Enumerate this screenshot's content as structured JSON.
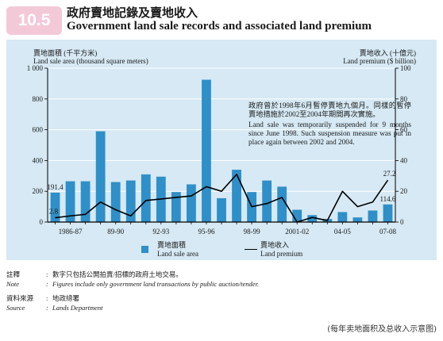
{
  "badge": "10.5",
  "title_cn": "政府賣地記錄及賣地收入",
  "title_en": "Government land sale records and associated land premium",
  "left_axis": {
    "label_cn": "賣地面積 (千平方米)",
    "label_en": "Land sale area (thousand square meters)"
  },
  "right_axis": {
    "label_cn": "賣地收入 (十億元)",
    "label_en": "Land premium ($ billion)"
  },
  "annotation": {
    "cn": "政府曾於1998年6月暫停賣地九個月。同樣的暫停賣地措施於2002至2004年期間再次實施。",
    "en": "Land sale was temporarily suspended for 9 months since June 1998. Such suspension measure was put in place again between 2002 and 2004."
  },
  "legend": {
    "bar_cn": "賣地面積",
    "bar_en": "Land sale area",
    "line_cn": "賣地收入",
    "line_en": "Land premium"
  },
  "notes": {
    "note_label_cn": "註釋",
    "note_text_cn": "數字只包括公開拍賣/招標的政府土地交易。",
    "note_label_en": "Note",
    "note_text_en": "Figures include only government land transactions by public auction/tender.",
    "source_label_cn": "資料來源",
    "source_text_cn": "地政總署",
    "source_label_en": "Source",
    "source_text_en": "Lands Department"
  },
  "caption": "(每年卖地面积及总收入示意图)",
  "colors": {
    "bar": "#2f8fc8",
    "line": "#000000",
    "panel": "#d6e9f4",
    "badge": "#f3c9d8"
  },
  "chart_data": {
    "type": "bar",
    "categories": [
      "1985-86",
      "1986-87",
      "1987-88",
      "1988-89",
      "1989-90",
      "1990-91",
      "1991-92",
      "1992-93",
      "1993-94",
      "1994-95",
      "1995-96",
      "1996-97",
      "1997-98",
      "1998-99",
      "1999-2000",
      "2000-01",
      "2001-02",
      "2002-03",
      "2003-04",
      "2004-05",
      "2005-06",
      "2006-07",
      "2007-08"
    ],
    "tick_labels": [
      "1986-87",
      "89-90",
      "92-93",
      "95-96",
      "98-99",
      "2001-02",
      "04-05",
      "07-08"
    ],
    "tick_label_categories": [
      "1986-87",
      "1989-90",
      "1992-93",
      "1995-96",
      "1998-99",
      "2001-02",
      "2004-05",
      "2007-08"
    ],
    "series": [
      {
        "name": "Land sale area",
        "axis": "left",
        "type": "bar",
        "values": [
          191.4,
          265,
          265,
          590,
          260,
          270,
          310,
          295,
          195,
          245,
          925,
          155,
          340,
          195,
          270,
          230,
          80,
          45,
          20,
          65,
          30,
          75,
          114.6
        ]
      },
      {
        "name": "Land premium",
        "axis": "right",
        "type": "line",
        "values": [
          2.8,
          4,
          5,
          13,
          8,
          4,
          14,
          15,
          16,
          17,
          23,
          20,
          31,
          10,
          12,
          16,
          0,
          3,
          1,
          20,
          10,
          13,
          27.2
        ]
      }
    ],
    "data_labels": [
      {
        "category": "1985-86",
        "series": "Land sale area",
        "text": "191.4"
      },
      {
        "category": "1985-86",
        "series": "Land premium",
        "text": "2.8"
      },
      {
        "category": "2007-08",
        "series": "Land premium",
        "text": "27.2"
      },
      {
        "category": "2007-08",
        "series": "Land sale area",
        "text": "114.6"
      }
    ],
    "ylim_left": [
      0,
      1000
    ],
    "ylim_right": [
      0,
      100
    ],
    "yticks_left": [
      0,
      200,
      400,
      600,
      800,
      1000
    ],
    "yticks_right": [
      0,
      20,
      40,
      60,
      80,
      100
    ],
    "ytick_labels_left": [
      "0",
      "200",
      "400",
      "600",
      "800",
      "1 000"
    ],
    "grid": true,
    "legend_position": "bottom"
  }
}
